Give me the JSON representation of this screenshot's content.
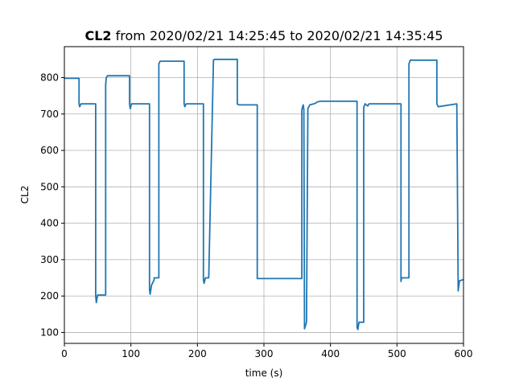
{
  "chart_data": {
    "type": "line",
    "title_bold": "CL2",
    "title_rest": " from 2020/02/21 14:25:45 to 2020/02/21 14:35:45",
    "xlabel": "time (s)",
    "ylabel": "CL2",
    "xlim": [
      0,
      600
    ],
    "ylim": [
      70,
      885
    ],
    "xticks": [
      0,
      100,
      200,
      300,
      400,
      500,
      600
    ],
    "yticks": [
      100,
      200,
      300,
      400,
      500,
      600,
      700,
      800
    ],
    "grid": true,
    "colors": {
      "series": "#1f77b4",
      "grid": "#b0b0b0"
    },
    "series": [
      {
        "x": [
          0,
          22,
          22,
          23,
          25,
          47,
          47,
          48,
          50,
          62,
          62,
          63,
          65,
          98,
          98,
          99,
          101,
          128,
          128,
          129,
          131,
          135,
          135,
          142,
          142,
          144,
          180,
          180,
          181,
          183,
          209,
          209,
          210,
          212,
          217,
          217,
          224,
          224,
          226,
          260,
          260,
          262,
          290,
          290,
          357,
          357,
          359,
          360,
          361,
          361,
          364,
          364,
          366,
          369,
          375,
          378,
          380,
          385,
          390,
          440,
          440,
          441,
          443,
          450,
          450,
          452,
          456,
          458,
          506,
          506,
          507,
          510,
          518,
          518,
          520,
          560,
          560,
          562,
          590,
          590,
          592,
          594,
          600
        ],
        "y": [
          798,
          798,
          728,
          720,
          728,
          728,
          200,
          182,
          203,
          203,
          780,
          800,
          805,
          805,
          728,
          715,
          728,
          728,
          218,
          205,
          230,
          245,
          250,
          250,
          838,
          845,
          845,
          728,
          720,
          728,
          728,
          245,
          235,
          250,
          250,
          250,
          840,
          848,
          850,
          850,
          728,
          725,
          725,
          248,
          248,
          712,
          725,
          712,
          110,
          110,
          128,
          128,
          715,
          725,
          728,
          730,
          733,
          735,
          735,
          735,
          115,
          108,
          128,
          128,
          718,
          728,
          722,
          728,
          728,
          240,
          250,
          250,
          250,
          838,
          848,
          848,
          728,
          720,
          728,
          728,
          214,
          242,
          245
        ]
      }
    ]
  }
}
